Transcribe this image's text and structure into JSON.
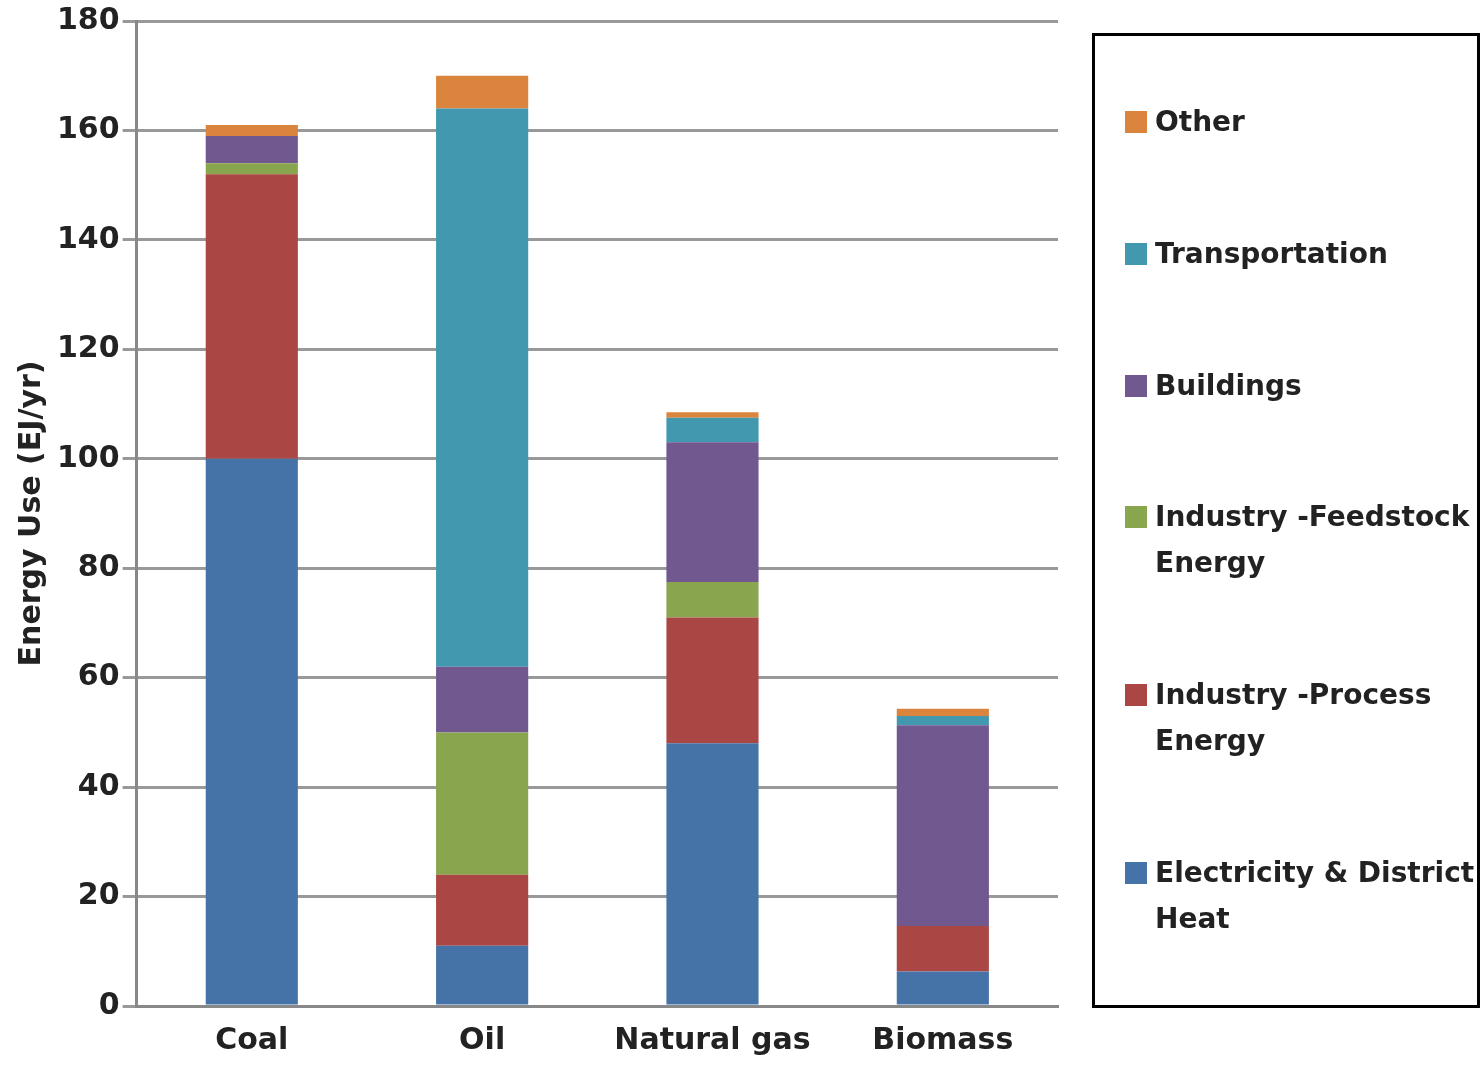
{
  "chart_data": {
    "type": "bar",
    "ylabel": "Energy Use (EJ/yr)",
    "categories": [
      "Coal",
      "Oil",
      "Natural gas",
      "Biomass"
    ],
    "stacked": true,
    "legend": "right",
    "grid": "y",
    "ylim": [
      0,
      180
    ],
    "yticks": [
      0,
      20,
      40,
      60,
      80,
      100,
      120,
      140,
      160,
      180
    ],
    "series": [
      {
        "name": "Electricity & District Heat",
        "color": "#4573a7",
        "values": [
          100,
          11,
          48,
          6.3
        ]
      },
      {
        "name": "Industry -Process Energy",
        "color": "#aa4644",
        "values": [
          52,
          13,
          23,
          8.3
        ]
      },
      {
        "name": "Industry -Feedstock Energy",
        "color": "#89a54e",
        "values": [
          2,
          26,
          6.5,
          0
        ]
      },
      {
        "name": "Buildings",
        "color": "#71588f",
        "values": [
          5,
          12,
          25.5,
          36.7
        ]
      },
      {
        "name": "Transportation",
        "color": "#4198af",
        "values": [
          0,
          102,
          4.5,
          1.7
        ]
      },
      {
        "name": "Other",
        "color": "#db843d",
        "values": [
          2,
          6,
          1,
          1.3
        ]
      }
    ]
  }
}
